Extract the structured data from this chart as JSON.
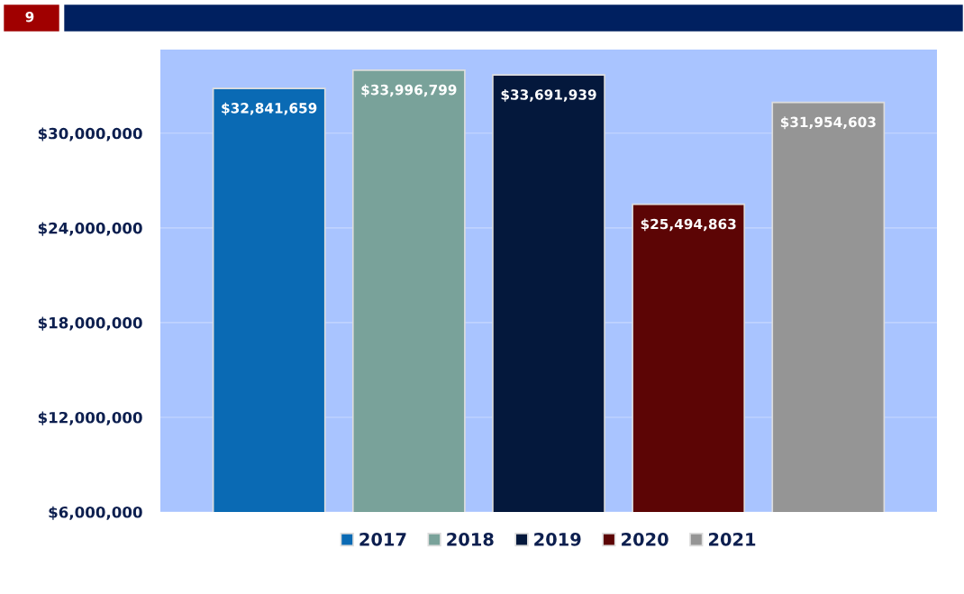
{
  "chart_data": {
    "type": "bar",
    "categories": [
      null
    ],
    "series": [
      {
        "name": "2017",
        "color": "#0a6ab4",
        "values": [
          32841659
        ],
        "value_labels": [
          "$32,841,659"
        ]
      },
      {
        "name": "2018",
        "color": "#79a29a",
        "values": [
          33996799
        ],
        "value_labels": [
          "$33,996,799"
        ]
      },
      {
        "name": "2019",
        "color": "#04183c",
        "values": [
          33691939
        ],
        "value_labels": [
          "$33,691,939"
        ]
      },
      {
        "name": "2020",
        "color": "#5c0505",
        "values": [
          25494863
        ],
        "value_labels": [
          "$25,494,863"
        ]
      },
      {
        "name": "2021",
        "color": "#959595",
        "values": [
          31954603
        ],
        "value_labels": [
          "$31,954,603"
        ]
      }
    ],
    "ylim": [
      6000000,
      35300000
    ],
    "yticks": [
      {
        "value": 6000000,
        "label": "$6,000,000"
      },
      {
        "value": 12000000,
        "label": "$12,000,000"
      },
      {
        "value": 18000000,
        "label": "$18,000,000"
      },
      {
        "value": 24000000,
        "label": "$24,000,000"
      },
      {
        "value": 30000000,
        "label": "$30,000,000"
      }
    ],
    "grid": "y",
    "legend": "bottom",
    "annotations": [
      "9"
    ]
  }
}
